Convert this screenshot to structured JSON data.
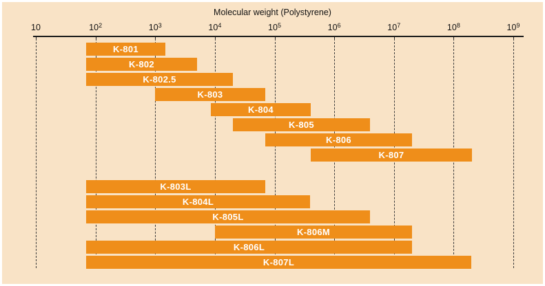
{
  "chart_data": {
    "type": "bar",
    "subtype": "horizontal-range-log",
    "title": "Molecular weight (Polystyrene)",
    "xlabel": "Molecular weight (Polystyrene)",
    "ylabel": "",
    "x_scale": "log",
    "x_range_exponents": [
      1,
      9
    ],
    "xlim": [
      10,
      1000000000
    ],
    "grid": "dashed-vertical-per-decade",
    "legend": "none",
    "x_ticks": [
      {
        "base": "10",
        "sup": ""
      },
      {
        "base": "10",
        "sup": "2"
      },
      {
        "base": "10",
        "sup": "3"
      },
      {
        "base": "10",
        "sup": "4"
      },
      {
        "base": "10",
        "sup": "5"
      },
      {
        "base": "10",
        "sup": "6"
      },
      {
        "base": "10",
        "sup": "7"
      },
      {
        "base": "10",
        "sup": "8"
      },
      {
        "base": "10",
        "sup": "9"
      }
    ],
    "bars": [
      {
        "label": "K-801",
        "mw_min": 70,
        "mw_max": 1500,
        "group": 1
      },
      {
        "label": "K-802",
        "mw_min": 70,
        "mw_max": 5000,
        "group": 1
      },
      {
        "label": "K-802.5",
        "mw_min": 70,
        "mw_max": 20000,
        "group": 1
      },
      {
        "label": "K-803",
        "mw_min": 1000,
        "mw_max": 70000,
        "group": 1
      },
      {
        "label": "K-804",
        "mw_min": 8500,
        "mw_max": 400000,
        "group": 1
      },
      {
        "label": "K-805",
        "mw_min": 20000,
        "mw_max": 4000000,
        "group": 1
      },
      {
        "label": "K-806",
        "mw_min": 70000,
        "mw_max": 20000000,
        "group": 1
      },
      {
        "label": "K-807",
        "mw_min": 400000,
        "mw_max": 200000000,
        "group": 1
      },
      {
        "label": "K-803L",
        "mw_min": 70,
        "mw_max": 70000,
        "group": 2
      },
      {
        "label": "K-804L",
        "mw_min": 70,
        "mw_max": 400000,
        "group": 2
      },
      {
        "label": "K-805L",
        "mw_min": 70,
        "mw_max": 4000000,
        "group": 2
      },
      {
        "label": "K-806M",
        "mw_min": 10000,
        "mw_max": 20000000,
        "group": 2
      },
      {
        "label": "K-806L",
        "mw_min": 70,
        "mw_max": 20000000,
        "group": 2
      },
      {
        "label": "K-807L",
        "mw_min": 70,
        "mw_max": 200000000,
        "group": 2
      }
    ],
    "colors": {
      "bar": "#EF8E1A",
      "bar_label": "#FFFFFF",
      "background": "#F9E3C6",
      "frame": "#FFFFFF",
      "axis": "#1A1A1A",
      "gridline": "#3A3A3A",
      "title_text": "#111111"
    }
  }
}
